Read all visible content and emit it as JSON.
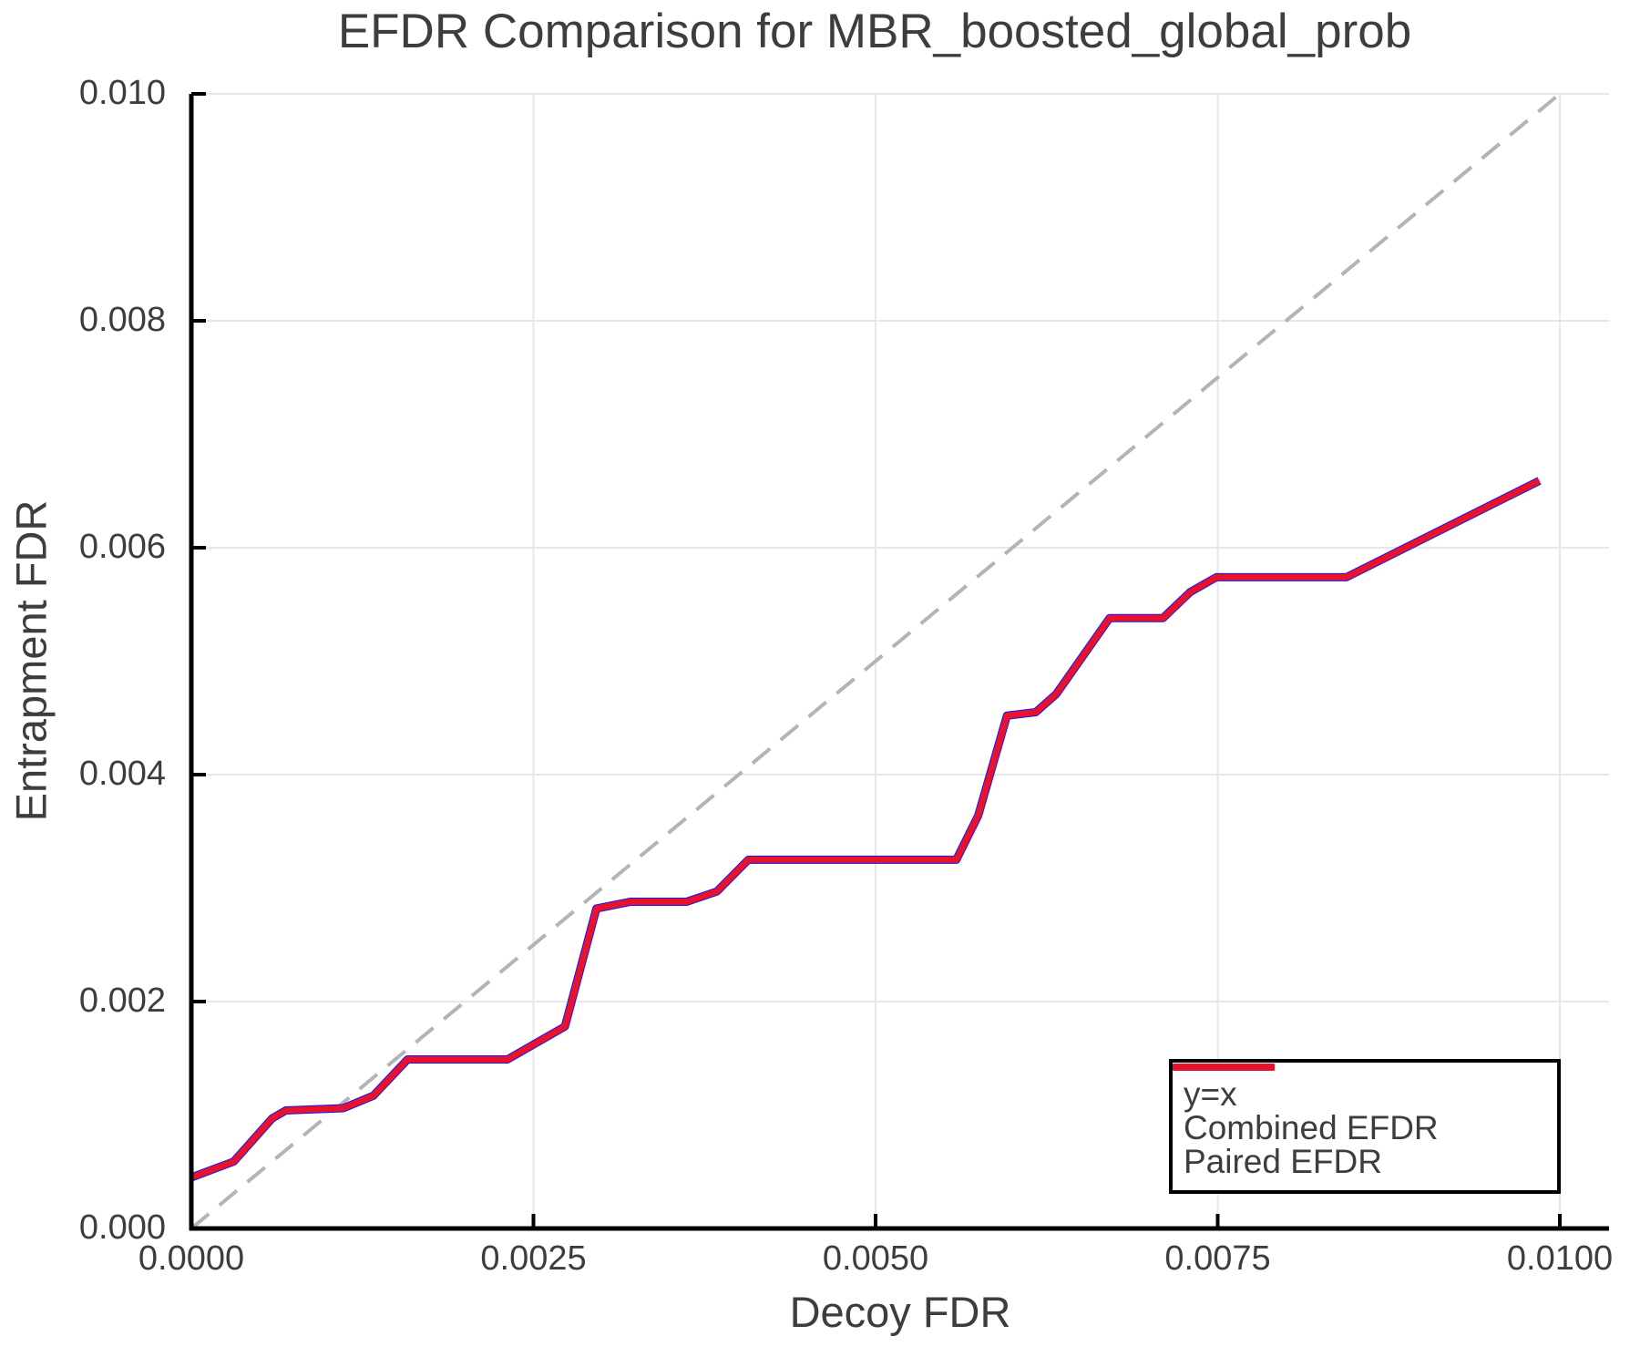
{
  "title": "EFDR Comparison for MBR_boosted_global_prob",
  "colors": {
    "diagonal": "#b4b4b4",
    "combined_blue": "#1414ff",
    "paired_red": "#e8122d",
    "grid": "#e7e7e7",
    "axis": "#000000",
    "text": "#3d3d3d"
  },
  "legend": {
    "entries": [
      "y=x",
      "Combined EFDR",
      "Paired EFDR"
    ]
  },
  "chart_data": {
    "type": "line",
    "title": "EFDR Comparison for MBR_boosted_global_prob",
    "xlabel": "Decoy FDR",
    "ylabel": "Entrapment FDR",
    "xlim": [
      0,
      0.010359
    ],
    "ylim": [
      0,
      0.01
    ],
    "grid": true,
    "legend_position": "lower right",
    "x_ticks": [
      0.0,
      0.0025,
      0.005,
      0.0075,
      0.01
    ],
    "x_tick_labels": [
      "0.0000",
      "0.0025",
      "0.0050",
      "0.0075",
      "0.0100"
    ],
    "y_ticks": [
      0.0,
      0.002,
      0.004,
      0.006,
      0.008,
      0.01
    ],
    "y_tick_labels": [
      "0.000",
      "0.002",
      "0.004",
      "0.006",
      "0.008",
      "0.010"
    ],
    "series": [
      {
        "name": "y=x",
        "style": "dashed",
        "color": "#b4b4b4",
        "x": [
          0.0,
          0.01
        ],
        "y": [
          0.0,
          0.01
        ]
      },
      {
        "name": "Combined EFDR",
        "style": "solid",
        "color": "#1414ff",
        "x": [
          0.0,
          0.00031,
          0.00059,
          0.00069,
          0.00111,
          0.00133,
          0.00158,
          0.00231,
          0.00273,
          0.00296,
          0.00321,
          0.00362,
          0.00384,
          0.00407,
          0.00559,
          0.00575,
          0.00596,
          0.00617,
          0.00632,
          0.00671,
          0.0071,
          0.0073,
          0.00749,
          0.00844,
          0.00985
        ],
        "y": [
          0.00045,
          0.00059,
          0.00097,
          0.00104,
          0.00106,
          0.00117,
          0.00149,
          0.00149,
          0.00178,
          0.00282,
          0.00288,
          0.00288,
          0.00297,
          0.00325,
          0.00325,
          0.00364,
          0.00452,
          0.00455,
          0.00471,
          0.00538,
          0.00538,
          0.00561,
          0.00574,
          0.00574,
          0.00659
        ]
      },
      {
        "name": "Paired EFDR",
        "style": "solid",
        "color": "#e8122d",
        "x": [
          0.0,
          0.00031,
          0.00059,
          0.00069,
          0.00111,
          0.00133,
          0.00158,
          0.00231,
          0.00273,
          0.00296,
          0.00321,
          0.00362,
          0.00384,
          0.00407,
          0.00559,
          0.00575,
          0.00596,
          0.00617,
          0.00632,
          0.00671,
          0.0071,
          0.0073,
          0.00749,
          0.00844,
          0.00985
        ],
        "y": [
          0.00045,
          0.00059,
          0.00097,
          0.00104,
          0.00106,
          0.00117,
          0.00149,
          0.00149,
          0.00178,
          0.00282,
          0.00288,
          0.00288,
          0.00297,
          0.00325,
          0.00325,
          0.00364,
          0.00452,
          0.00455,
          0.00471,
          0.00538,
          0.00538,
          0.00561,
          0.00574,
          0.00574,
          0.00659
        ]
      }
    ]
  }
}
